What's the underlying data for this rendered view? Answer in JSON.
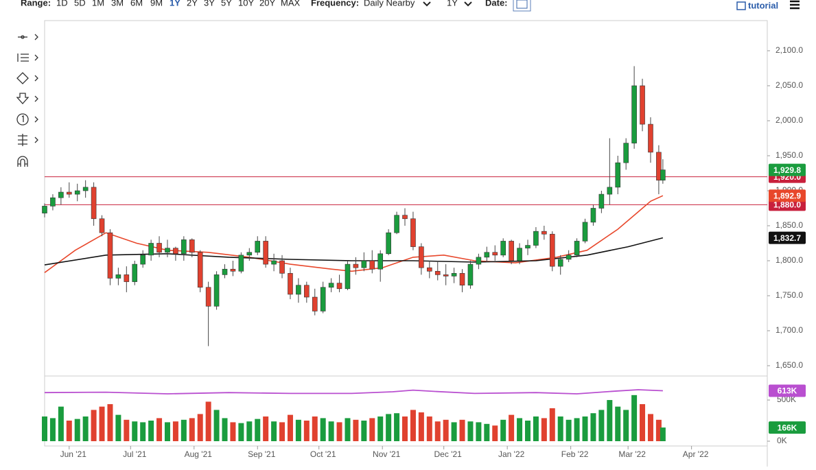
{
  "toolbar": {
    "range_label": "Range:",
    "ranges": [
      "1D",
      "5D",
      "1M",
      "3M",
      "6M",
      "9M",
      "1Y",
      "2Y",
      "3Y",
      "5Y",
      "10Y",
      "20Y",
      "MAX"
    ],
    "frequency_label": "Frequency:",
    "frequency": "Daily Nearby",
    "period": "1Y",
    "date_label": "Date:",
    "tutorial": "tutorial"
  },
  "chart_data": {
    "type": "candlestick",
    "up_color": "#1a9c3e",
    "down_color": "#e0412f",
    "x": [
      0,
      4,
      8,
      12,
      16,
      20,
      24,
      28,
      32,
      36,
      40,
      44,
      48,
      52,
      56,
      60,
      64,
      68,
      72,
      76,
      80,
      84,
      88,
      92,
      96,
      100,
      104,
      108,
      112,
      116,
      120,
      124,
      128,
      132,
      136,
      140,
      144,
      148,
      152,
      156,
      160,
      164,
      168,
      172,
      176,
      180,
      184,
      188,
      192,
      196,
      200,
      204,
      208,
      212,
      216,
      220,
      224,
      228,
      232,
      236,
      240,
      244,
      248,
      252,
      256,
      260,
      264,
      268,
      272,
      276,
      280,
      284,
      288,
      292,
      296,
      300,
      302
    ],
    "open": [
      1868,
      1878,
      1890,
      1898,
      1895,
      1900,
      1905,
      1860,
      1840,
      1775,
      1780,
      1770,
      1795,
      1808,
      1825,
      1812,
      1818,
      1810,
      1830,
      1812,
      1762,
      1735,
      1780,
      1788,
      1785,
      1808,
      1812,
      1828,
      1795,
      1800,
      1782,
      1752,
      1765,
      1748,
      1728,
      1762,
      1768,
      1760,
      1795,
      1790,
      1800,
      1788,
      1810,
      1840,
      1865,
      1860,
      1820,
      1790,
      1785,
      1780,
      1778,
      1782,
      1765,
      1795,
      1805,
      1812,
      1808,
      1828,
      1800,
      1818,
      1822,
      1842,
      1838,
      1792,
      1802,
      1808,
      1828,
      1855,
      1875,
      1895,
      1905,
      1940,
      1968,
      2050,
      1995,
      1955,
      1915
    ],
    "high": [
      1882,
      1895,
      1905,
      1912,
      1910,
      1915,
      1912,
      1865,
      1845,
      1790,
      1792,
      1800,
      1815,
      1830,
      1835,
      1830,
      1820,
      1835,
      1832,
      1815,
      1770,
      1785,
      1795,
      1800,
      1812,
      1818,
      1835,
      1835,
      1810,
      1808,
      1790,
      1775,
      1770,
      1760,
      1770,
      1775,
      1780,
      1800,
      1805,
      1812,
      1815,
      1815,
      1845,
      1870,
      1875,
      1870,
      1825,
      1800,
      1800,
      1795,
      1790,
      1788,
      1800,
      1810,
      1820,
      1822,
      1832,
      1830,
      1825,
      1830,
      1848,
      1850,
      1842,
      1808,
      1815,
      1832,
      1860,
      1880,
      1900,
      1975,
      1950,
      1975,
      2078,
      2060,
      2005,
      1965,
      1945
    ],
    "low": [
      1862,
      1872,
      1880,
      1890,
      1885,
      1890,
      1850,
      1835,
      1765,
      1765,
      1755,
      1765,
      1790,
      1800,
      1805,
      1805,
      1800,
      1800,
      1805,
      1755,
      1678,
      1730,
      1775,
      1778,
      1782,
      1800,
      1808,
      1790,
      1785,
      1775,
      1745,
      1740,
      1740,
      1722,
      1725,
      1755,
      1755,
      1758,
      1780,
      1785,
      1782,
      1770,
      1808,
      1838,
      1850,
      1815,
      1780,
      1775,
      1772,
      1765,
      1768,
      1755,
      1760,
      1788,
      1798,
      1800,
      1805,
      1795,
      1795,
      1808,
      1818,
      1830,
      1785,
      1780,
      1798,
      1805,
      1825,
      1850,
      1868,
      1880,
      1895,
      1930,
      1960,
      1985,
      1940,
      1895,
      1910
    ],
    "close": [
      1878,
      1890,
      1898,
      1895,
      1900,
      1905,
      1860,
      1840,
      1775,
      1780,
      1770,
      1795,
      1808,
      1825,
      1812,
      1818,
      1810,
      1830,
      1812,
      1762,
      1735,
      1780,
      1788,
      1785,
      1808,
      1812,
      1828,
      1795,
      1800,
      1782,
      1752,
      1765,
      1748,
      1728,
      1762,
      1768,
      1760,
      1795,
      1790,
      1800,
      1788,
      1810,
      1840,
      1865,
      1860,
      1820,
      1790,
      1785,
      1780,
      1778,
      1782,
      1765,
      1795,
      1805,
      1812,
      1808,
      1828,
      1800,
      1818,
      1822,
      1842,
      1838,
      1792,
      1802,
      1808,
      1828,
      1855,
      1875,
      1895,
      1905,
      1940,
      1968,
      2050,
      1995,
      1955,
      1915,
      1929.8
    ],
    "last_label": {
      "value": 1929.8,
      "label": "1,929.8"
    },
    "xlim": [
      0,
      353
    ],
    "xticks": [
      {
        "value": 12,
        "label": "Jun '21"
      },
      {
        "value": 42,
        "label": "Jul '21"
      },
      {
        "value": 73,
        "label": "Aug '21"
      },
      {
        "value": 104,
        "label": "Sep '21"
      },
      {
        "value": 134,
        "label": "Oct '21"
      },
      {
        "value": 165,
        "label": "Nov '21"
      },
      {
        "value": 195,
        "label": "Dec '21"
      },
      {
        "value": 226,
        "label": "Jan '22"
      },
      {
        "value": 257,
        "label": "Feb '22"
      },
      {
        "value": 285,
        "label": "Mar '22"
      },
      {
        "value": 316,
        "label": "Apr '22"
      }
    ],
    "ylim": [
      1635.3,
      2143.1
    ],
    "yticks": [
      {
        "value": 1650,
        "label": "1,650.0"
      },
      {
        "value": 1700,
        "label": "1,700.0"
      },
      {
        "value": 1750,
        "label": "1,750.0"
      },
      {
        "value": 1800,
        "label": "1,800.0"
      },
      {
        "value": 1850,
        "label": "1,850.0"
      },
      {
        "value": 1900,
        "label": "1,900.0"
      },
      {
        "value": 1950,
        "label": "1,950.0"
      },
      {
        "value": 2000,
        "label": "2,000.0"
      },
      {
        "value": 2050,
        "label": "2,050.0"
      },
      {
        "value": 2100,
        "label": "2,100.0"
      }
    ],
    "hlines": [
      {
        "value": 1920,
        "label": "1,920.0",
        "color": "#c8203c"
      },
      {
        "value": 1880,
        "label": "1,880.0",
        "color": "#c8203c"
      }
    ],
    "overlays": [
      {
        "color": "#e8472b",
        "x": [
          0,
          15,
          30,
          45,
          60,
          80,
          100,
          120,
          140,
          150,
          165,
          180,
          195,
          210,
          230,
          250,
          265,
          280,
          290,
          296,
          302
        ],
        "values": [
          1783,
          1815,
          1840,
          1825,
          1815,
          1812,
          1805,
          1795,
          1788,
          1785,
          1790,
          1805,
          1808,
          1800,
          1797,
          1805,
          1815,
          1845,
          1870,
          1885,
          1892.9
        ],
        "label": "1,892.9"
      },
      {
        "color": "#111111",
        "x": [
          0,
          30,
          60,
          90,
          120,
          150,
          180,
          210,
          240,
          265,
          285,
          302
        ],
        "values": [
          1794,
          1808,
          1810,
          1805,
          1802,
          1800,
          1800,
          1798,
          1800,
          1808,
          1820,
          1832.7
        ],
        "label": "1,832.7"
      }
    ],
    "volume": {
      "ylim": [
        0,
        792000
      ],
      "yticks": [
        {
          "value": 0,
          "label": "0K"
        },
        {
          "value": 500000,
          "label": "500K"
        }
      ],
      "values": [
        300000,
        280000,
        420000,
        250000,
        270000,
        300000,
        380000,
        420000,
        450000,
        320000,
        260000,
        240000,
        230000,
        250000,
        280000,
        230000,
        240000,
        260000,
        280000,
        330000,
        480000,
        380000,
        280000,
        230000,
        220000,
        240000,
        270000,
        300000,
        240000,
        230000,
        320000,
        260000,
        250000,
        300000,
        280000,
        240000,
        230000,
        280000,
        260000,
        250000,
        280000,
        300000,
        330000,
        340000,
        300000,
        380000,
        350000,
        300000,
        240000,
        260000,
        230000,
        260000,
        240000,
        230000,
        210000,
        190000,
        260000,
        320000,
        280000,
        250000,
        300000,
        280000,
        400000,
        300000,
        260000,
        280000,
        300000,
        340000,
        380000,
        500000,
        420000,
        380000,
        560000,
        450000,
        330000,
        260000,
        166000
      ],
      "last_label": "166K",
      "ma": {
        "color": "#b94fd0",
        "x": [
          0,
          30,
          60,
          90,
          120,
          150,
          170,
          180,
          190,
          210,
          240,
          260,
          280,
          290,
          302
        ],
        "values": [
          590000,
          595000,
          575000,
          590000,
          580000,
          580000,
          600000,
          620000,
          605000,
          580000,
          590000,
          575000,
          610000,
          625000,
          613000
        ],
        "label": "613K"
      }
    }
  }
}
